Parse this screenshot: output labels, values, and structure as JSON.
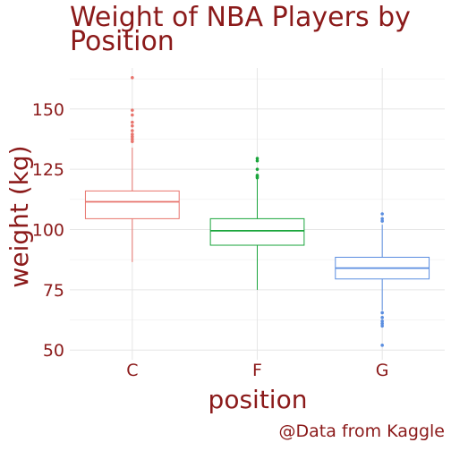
{
  "chart_data": {
    "type": "box",
    "title": "Weight of NBA Players by Position",
    "title_lines": [
      "Weight of NBA Players by",
      "Position"
    ],
    "xlabel": "position",
    "ylabel": "weight (kg)",
    "caption": "@Data from Kaggle",
    "categories": [
      "C",
      "F",
      "G"
    ],
    "ylim": [
      46,
      167
    ],
    "yticks": [
      50,
      75,
      100,
      125,
      150
    ],
    "grid": true,
    "legend": "none",
    "boxes": [
      {
        "category": "C",
        "color": "#e8746d",
        "min": 86.5,
        "q1": 104.5,
        "median": 111.5,
        "q3": 116,
        "max": 134,
        "outliers": [
          163,
          149.5,
          147.5,
          144.5,
          143,
          141,
          139.5,
          138.5,
          137.5,
          136.5
        ]
      },
      {
        "category": "F",
        "color": "#1aa53c",
        "min": 75,
        "q1": 93.5,
        "median": 99.5,
        "q3": 104.5,
        "max": 121,
        "outliers": [
          129.5,
          128.5,
          125,
          122.5,
          122,
          121.5
        ]
      },
      {
        "category": "G",
        "color": "#5b8ee0",
        "min": 66.5,
        "q1": 79.5,
        "median": 84,
        "q3": 88.5,
        "max": 102,
        "outliers": [
          106.5,
          104.5,
          103.5,
          65.5,
          63.5,
          62,
          61,
          60,
          52
        ]
      }
    ]
  }
}
